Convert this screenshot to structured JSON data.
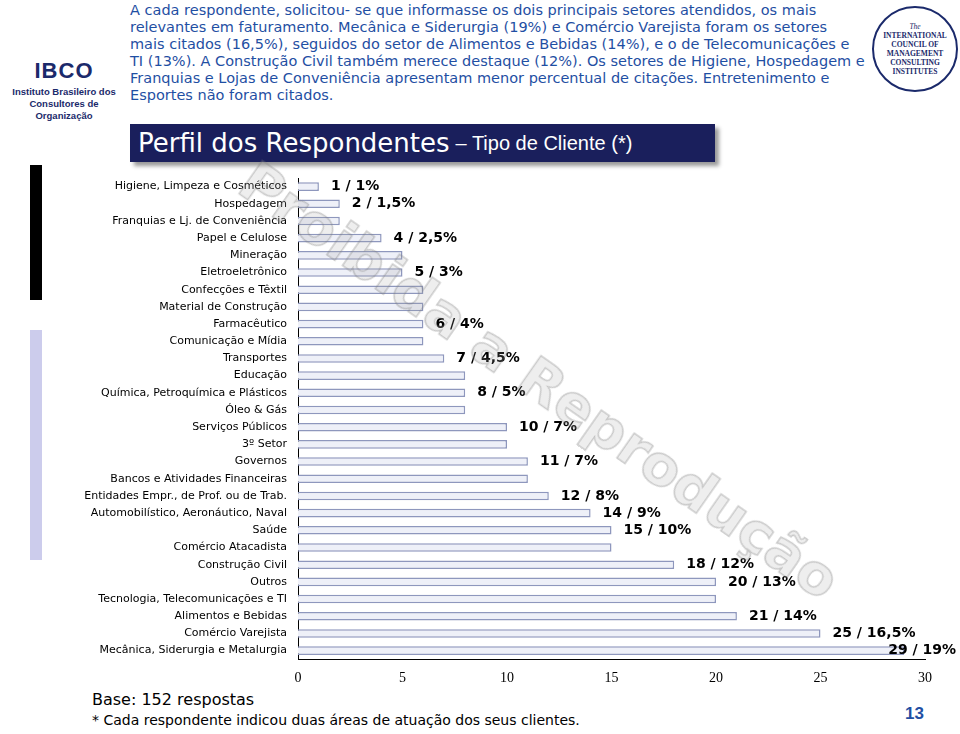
{
  "page": {
    "logo_left": "IBCO",
    "logo_left_subtitle": [
      "Instituto Brasileiro dos",
      "Consultores de Organização"
    ],
    "logo_right": [
      "The",
      "INTERNATIONAL",
      "COUNCIL OF",
      "MANAGEMENT",
      "CONSULTING",
      "INSTITUTES"
    ],
    "intro": "A cada respondente, solicitou- se que informasse os dois principais setores atendidos, os mais relevantes em faturamento. Mecânica e Siderurgia (19%) e Comércio Varejista foram os setores mais citados (16,5%), seguidos do setor de Alimentos e Bebidas (14%), e o de Telecomunicações e TI (13%). A Construção Civil também merece destaque (12%). Os setores de Higiene, Hospedagem e Franquias e Lojas de Conveniência apresentam menor percentual de citações. Entretenimento e Esportes não foram citados.",
    "watermark": "Proibida a Reprodução",
    "page_number": "13"
  },
  "chart_data": {
    "type": "bar",
    "title": "Perfil dos Respondentes",
    "subtitle": "– Tipo de Cliente (*)",
    "orientation": "horizontal",
    "categories": [
      "Higiene, Limpeza e Cosméticos",
      "Hospedagem",
      "Franquias e Lj. de Conveniência",
      "Papel e Celulose",
      "Mineração",
      "Eletroeletrônico",
      "Confecções e Têxtil",
      "Material de Construção",
      "Farmacêutico",
      "Comunicação e Mídia",
      "Transportes",
      "Educação",
      "Química, Petroquímica e Plásticos",
      "Óleo & Gás",
      "Serviços Públicos",
      "3º Setor",
      "Governos",
      "Bancos e Atividades Financeiras",
      "Entidades Empr., de Prof. ou de Trab.",
      "Automobilístico, Aeronáutico, Naval",
      "Saúde",
      "Comércio Atacadista",
      "Construção Civil",
      "Outros",
      "Tecnologia, Telecomunicações e TI",
      "Alimentos e Bebidas",
      "Comércio Varejista",
      "Mecânica, Siderurgia e Metalurgia"
    ],
    "values": [
      1,
      2,
      2,
      4,
      5,
      5,
      6,
      6,
      6,
      6,
      7,
      8,
      8,
      8,
      10,
      10,
      11,
      11,
      12,
      14,
      15,
      15,
      18,
      20,
      20,
      21,
      25,
      29
    ],
    "value_labels": [
      "1 / 1%",
      "2 / 1,5%",
      null,
      "4 / 2,5%",
      null,
      "5 / 3%",
      null,
      null,
      "6 / 4%",
      null,
      "7 / 4,5%",
      null,
      "8 / 5%",
      null,
      "10 / 7%",
      null,
      "11 / 7%",
      null,
      "12 / 8%",
      "14 / 9%",
      "15 / 10%",
      null,
      "18 / 12%",
      "20 / 13%",
      null,
      "21 / 14%",
      "25 / 16,5%",
      "29 / 19%"
    ],
    "data_labels": true,
    "color": "#eef0f8",
    "xlim": [
      0,
      30
    ],
    "xticks": [
      0,
      5,
      10,
      15,
      20,
      25,
      30
    ],
    "grid": false,
    "annotations": [
      "Base: 152 respostas",
      "* Cada respondente indicou duas áreas de atuação dos seus clientes."
    ]
  }
}
